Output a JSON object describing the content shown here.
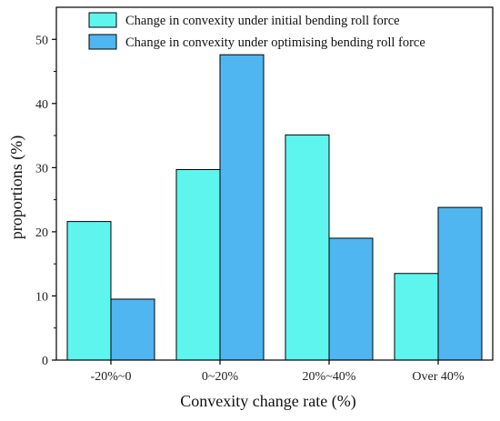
{
  "colors": {
    "initial": "#5EF5EF",
    "optimised": "#4FB6F2",
    "stroke": "#000000"
  },
  "chart_data": {
    "type": "bar",
    "categories": [
      "-20%~0",
      "0~20%",
      "20%~40%",
      "Over 40%"
    ],
    "series": [
      {
        "name": "Change in convexity under initial bending roll force",
        "values": [
          21.6,
          29.7,
          35.1,
          13.5
        ]
      },
      {
        "name": "Change in convexity under optimising bending roll force",
        "values": [
          9.5,
          47.6,
          19.0,
          23.8
        ]
      }
    ],
    "xlabel": "Convexity change rate (%)",
    "ylabel": "proportions (%)",
    "ylim": [
      0,
      55
    ],
    "yticks": [
      0,
      10,
      20,
      30,
      40,
      50
    ],
    "grid": false,
    "legend_position": "top-right"
  }
}
